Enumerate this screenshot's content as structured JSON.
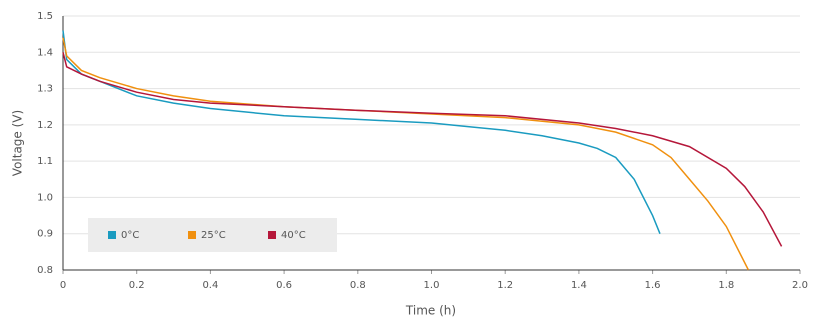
{
  "chart_data": {
    "type": "line",
    "xlabel": "Time (h)",
    "ylabel": "Voltage (V)",
    "xlim": [
      0,
      2
    ],
    "xticks": [
      0,
      0.2,
      0.4,
      0.6,
      0.8,
      {
        "value": 1,
        "label": "1.0"
      },
      1.2,
      1.4,
      1.6,
      1.8,
      {
        "value": 2,
        "label": "2.0"
      }
    ],
    "ylim": [
      0.8,
      1.5
    ],
    "yticks": [
      0.8,
      0.9,
      {
        "value": 1,
        "label": "1.0"
      },
      1.1,
      1.2,
      1.3,
      1.4,
      1.5
    ],
    "grid": true,
    "legend": "lower left",
    "series": [
      {
        "name": "0°C",
        "color": "#1a9bc0",
        "x": [
          0,
          0.01,
          0.05,
          0.1,
          0.2,
          0.3,
          0.4,
          0.6,
          0.8,
          1.0,
          1.2,
          1.3,
          1.4,
          1.45,
          1.5,
          1.55,
          1.6,
          1.62
        ],
        "values": [
          1.46,
          1.38,
          1.34,
          1.32,
          1.28,
          1.26,
          1.245,
          1.225,
          1.215,
          1.205,
          1.185,
          1.17,
          1.15,
          1.135,
          1.11,
          1.05,
          0.95,
          0.9
        ]
      },
      {
        "name": "25°C",
        "color": "#f0900f",
        "x": [
          0,
          0.01,
          0.05,
          0.1,
          0.2,
          0.3,
          0.4,
          0.6,
          0.8,
          1.0,
          1.2,
          1.4,
          1.5,
          1.6,
          1.65,
          1.7,
          1.75,
          1.8,
          1.86
        ],
        "values": [
          1.44,
          1.39,
          1.35,
          1.33,
          1.3,
          1.28,
          1.265,
          1.25,
          1.24,
          1.23,
          1.22,
          1.2,
          1.18,
          1.145,
          1.11,
          1.05,
          0.99,
          0.92,
          0.8
        ]
      },
      {
        "name": "40°C",
        "color": "#b5173a",
        "x": [
          0,
          0.01,
          0.05,
          0.1,
          0.2,
          0.3,
          0.4,
          0.6,
          0.8,
          1.0,
          1.2,
          1.4,
          1.5,
          1.6,
          1.7,
          1.8,
          1.85,
          1.9,
          1.95
        ],
        "values": [
          1.4,
          1.36,
          1.34,
          1.32,
          1.29,
          1.27,
          1.26,
          1.25,
          1.24,
          1.232,
          1.225,
          1.205,
          1.19,
          1.17,
          1.14,
          1.08,
          1.03,
          0.96,
          0.865
        ]
      }
    ]
  }
}
